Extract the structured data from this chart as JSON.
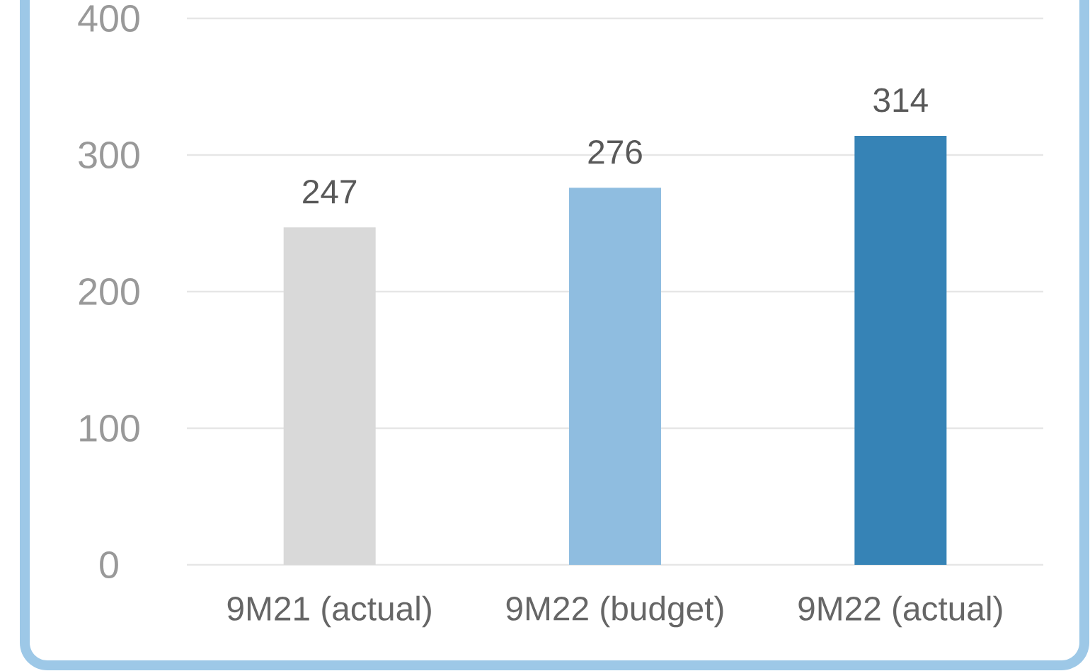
{
  "chart_data": {
    "type": "bar",
    "categories": [
      "9M21 (actual)",
      "9M22 (budget)",
      "9M22 (actual)"
    ],
    "values": [
      247,
      276,
      314
    ],
    "colors": [
      "#d9d9d9",
      "#8fbde0",
      "#3683b6"
    ],
    "ylim": [
      0,
      400
    ],
    "yticks": [
      0,
      100,
      200,
      300,
      400
    ],
    "grid": "y",
    "data_labels": true
  }
}
